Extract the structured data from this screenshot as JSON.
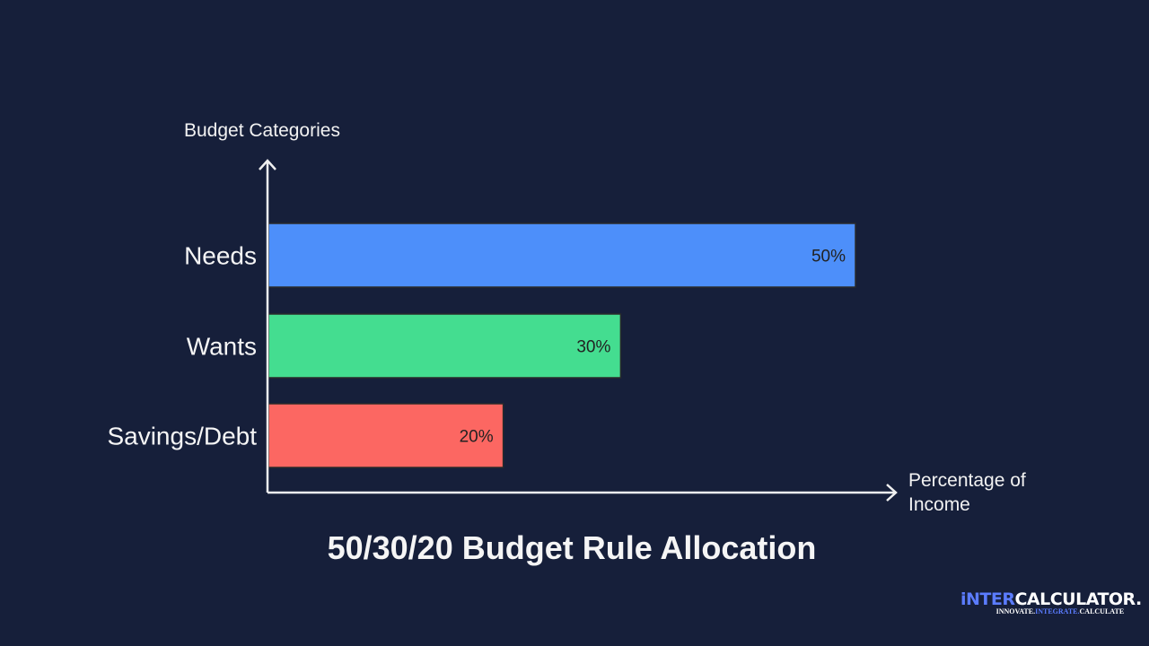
{
  "chart_data": {
    "type": "bar",
    "orientation": "horizontal",
    "title": "50/30/20 Budget Rule Allocation",
    "xlabel": "Percentage of Income",
    "ylabel": "Budget Categories",
    "categories": [
      "Needs",
      "Wants",
      "Savings/Debt"
    ],
    "values": [
      50,
      30,
      20
    ],
    "data_labels": [
      "50%",
      "30%",
      "20%"
    ],
    "colors": [
      "#4d8ffa",
      "#44dd90",
      "#fc6762"
    ],
    "xlim": [
      0,
      50
    ],
    "grid": false,
    "background": "#161f3a"
  },
  "logo": {
    "main_a": "iNTER",
    "main_b": "CALCULATOR.",
    "tag_a": "INNOVATE.",
    "tag_b": "INTEGRATE.",
    "tag_c": "CALCULATE"
  }
}
